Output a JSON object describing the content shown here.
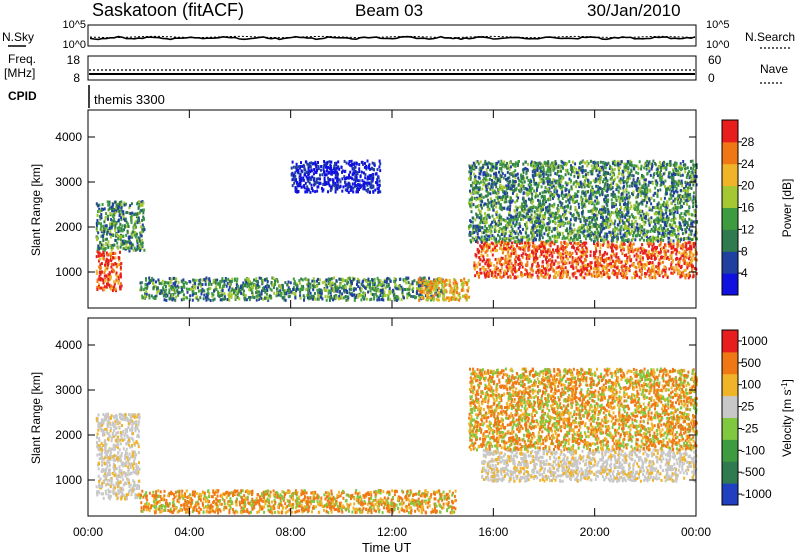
{
  "header": {
    "title": "Saskatoon (fitACF)",
    "beam": "Beam 03",
    "date": "30/Jan/2010"
  },
  "noise_panel": {
    "left_label": "N.Sky",
    "right_label": "N.Search",
    "left_ticks": [
      "10^5",
      "10^0"
    ],
    "right_ticks": [
      "10^5",
      "10^0"
    ]
  },
  "freq_panel": {
    "left_label_line1": "Freq.",
    "left_label_line2": "[MHz]",
    "right_label": "Nave",
    "left_ticks": [
      "18",
      "8"
    ],
    "right_ticks": [
      "60",
      "0"
    ]
  },
  "cpid_panel": {
    "label": "CPID",
    "value": "themis 3300"
  },
  "time_axis": {
    "label": "Time UT",
    "ticks": [
      "00:00",
      "04:00",
      "08:00",
      "12:00",
      "16:00",
      "20:00",
      "00:00"
    ]
  },
  "power_scale": {
    "label": "Power [dB]",
    "ticks": [
      "28",
      "24",
      "20",
      "16",
      "12",
      "8",
      "4"
    ],
    "colors": [
      "#1010e0",
      "#2040a0",
      "#2f7a4f",
      "#3f9b3f",
      "#a5c832",
      "#f0b428",
      "#f07814",
      "#e81e1e"
    ]
  },
  "velocity_scale": {
    "label": "Velocity [m s^-1]",
    "ticks": [
      "1000",
      "500",
      "100",
      "25",
      "-25",
      "-100",
      "-500",
      "-1000"
    ],
    "colors": [
      "#2040c0",
      "#2f7a4f",
      "#3f9b3f",
      "#80c840",
      "#c8c8c8",
      "#f0b428",
      "#f07814",
      "#e81e1e"
    ]
  },
  "chart_data": [
    {
      "type": "heatmap",
      "title": "Power",
      "xlabel": "Time UT",
      "ylabel": "Slant Range [km]",
      "xlim": [
        0,
        24
      ],
      "ylim": [
        200,
        4600
      ],
      "yticks": [
        1000,
        2000,
        3000,
        4000
      ],
      "colorbar": "Power [dB]",
      "regions": [
        {
          "t": [
            0.3,
            1.3
          ],
          "r": [
            600,
            1500
          ],
          "level": "red"
        },
        {
          "t": [
            0.3,
            2.2
          ],
          "r": [
            1500,
            2600
          ],
          "level": "green"
        },
        {
          "t": [
            2.0,
            14.0
          ],
          "r": [
            400,
            900
          ],
          "level": "green"
        },
        {
          "t": [
            13.0,
            15.0
          ],
          "r": [
            400,
            900
          ],
          "level": "orange"
        },
        {
          "t": [
            15.2,
            24.0
          ],
          "r": [
            900,
            1700
          ],
          "level": "red"
        },
        {
          "t": [
            15.0,
            24.0
          ],
          "r": [
            1700,
            3500
          ],
          "level": "green"
        },
        {
          "t": [
            8.0,
            11.5
          ],
          "r": [
            2800,
            3500
          ],
          "level": "blue"
        }
      ]
    },
    {
      "type": "heatmap",
      "title": "Velocity",
      "xlabel": "Time UT",
      "ylabel": "Slant Range [km]",
      "xlim": [
        0,
        24
      ],
      "ylim": [
        200,
        4600
      ],
      "yticks": [
        1000,
        2000,
        3000,
        4000
      ],
      "colorbar": "Velocity [m s^-1]",
      "regions": [
        {
          "t": [
            0.3,
            2.0
          ],
          "r": [
            600,
            2500
          ],
          "level": "gray"
        },
        {
          "t": [
            2.0,
            14.5
          ],
          "r": [
            300,
            800
          ],
          "level": "orange"
        },
        {
          "t": [
            15.5,
            24.0
          ],
          "r": [
            1000,
            1700
          ],
          "level": "gray"
        },
        {
          "t": [
            15.0,
            24.0
          ],
          "r": [
            1700,
            3500
          ],
          "level": "orange"
        }
      ]
    }
  ]
}
